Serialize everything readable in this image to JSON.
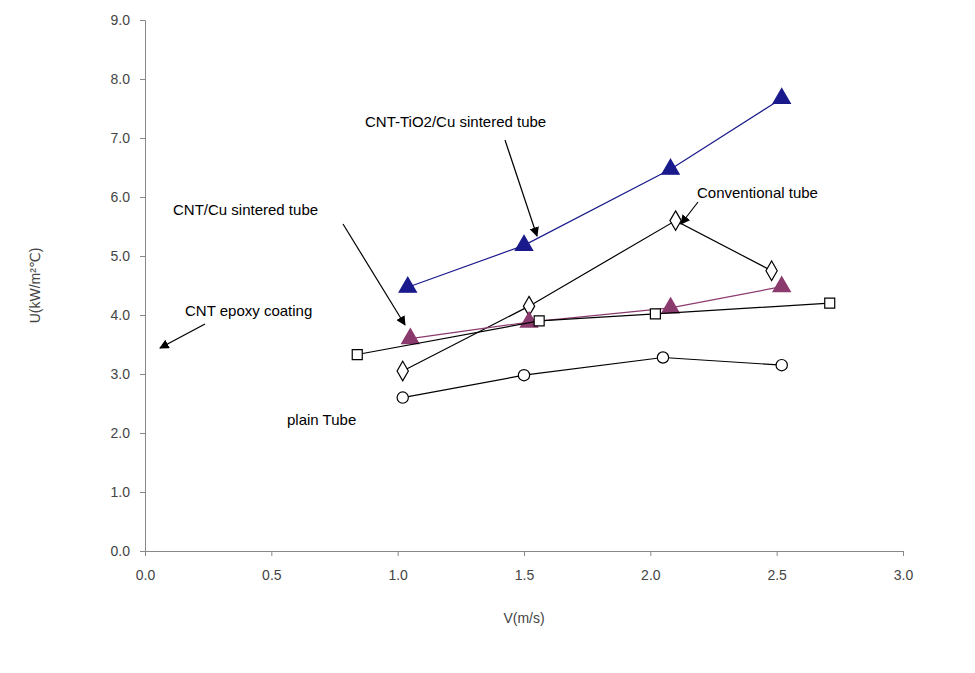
{
  "chart_data": {
    "type": "line",
    "x_label": "V(m/s)",
    "y_label": "U(kW/m²℃)",
    "xlim": [
      0,
      3
    ],
    "ylim": [
      0,
      9
    ],
    "xticks": [
      {
        "value": 0,
        "label": "0.0"
      },
      {
        "value": 0.5,
        "label": "0.5"
      },
      {
        "value": 1,
        "label": "1.0"
      },
      {
        "value": 1.5,
        "label": "1.5"
      },
      {
        "value": 2,
        "label": "2.0"
      },
      {
        "value": 2.5,
        "label": "2.5"
      },
      {
        "value": 3,
        "label": "3.0"
      }
    ],
    "yticks": [
      {
        "value": 0,
        "label": "0.0"
      },
      {
        "value": 1,
        "label": "1.0"
      },
      {
        "value": 2,
        "label": "2.0"
      },
      {
        "value": 3,
        "label": "3.0"
      },
      {
        "value": 4,
        "label": "4.0"
      },
      {
        "value": 5,
        "label": "5.0"
      },
      {
        "value": 6,
        "label": "6.0"
      },
      {
        "value": 7,
        "label": "7.0"
      },
      {
        "value": 8,
        "label": "8.0"
      },
      {
        "value": 9,
        "label": "9.0"
      }
    ],
    "grid": false,
    "series": [
      {
        "name": "CNT-TiO2/Cu sintered tube",
        "color": "#1a1a8c",
        "marker": "filled-triangle",
        "x": [
          1.04,
          1.5,
          2.08,
          2.52
        ],
        "values": [
          4.47,
          5.18,
          6.47,
          7.67
        ]
      },
      {
        "name": "Conventional tube",
        "color": "#000000",
        "marker": "open-diamond",
        "x": [
          1.02,
          1.52,
          2.1,
          2.48
        ],
        "values": [
          3.05,
          4.15,
          5.6,
          4.75
        ]
      },
      {
        "name": "CNT/Cu sintered tube",
        "color": "#8b3a6e",
        "marker": "filled-triangle",
        "x": [
          1.05,
          1.52,
          2.08,
          2.52
        ],
        "values": [
          3.6,
          3.88,
          4.12,
          4.48
        ]
      },
      {
        "name": "CNT epoxy coating",
        "color": "#000000",
        "marker": "open-square",
        "x": [
          0.84,
          1.56,
          2.02,
          2.71
        ],
        "values": [
          3.33,
          3.9,
          4.02,
          4.2
        ]
      },
      {
        "name": "plain Tube",
        "color": "#000000",
        "marker": "open-circle",
        "x": [
          1.02,
          1.5,
          2.05,
          2.52
        ],
        "values": [
          2.6,
          2.98,
          3.28,
          3.15
        ]
      }
    ]
  }
}
